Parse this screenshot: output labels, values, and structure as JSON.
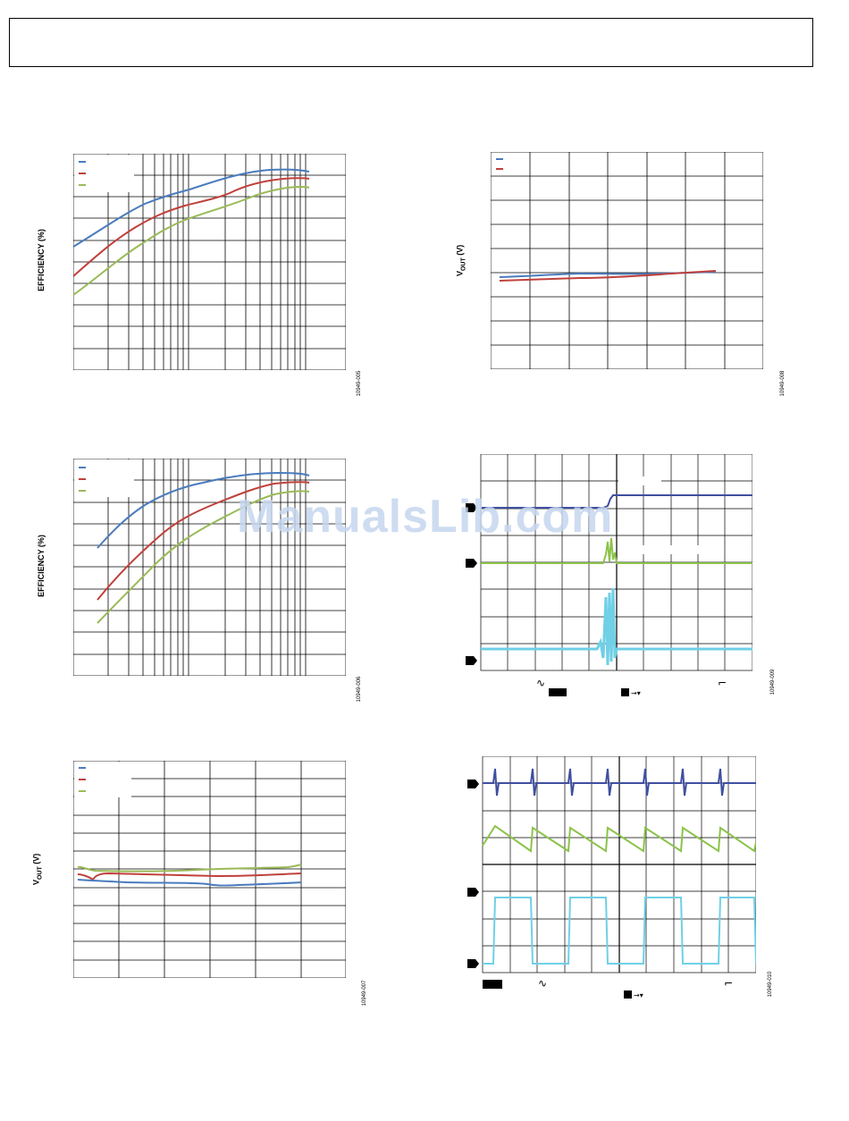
{
  "header": {
    "title": ""
  },
  "watermark": "ManualsLib.com",
  "charts": {
    "eff1": {
      "ylabel": "EFFICIENCY (%)",
      "fig_id": "10949-005"
    },
    "eff2": {
      "ylabel": "EFFICIENCY (%)",
      "fig_id": "10949-006"
    },
    "vout1": {
      "ylabel_main": "V",
      "ylabel_sub": "OUT",
      "ylabel_tail": " (V)",
      "fig_id": "10949-007"
    },
    "vout2": {
      "ylabel_main": "V",
      "ylabel_sub": "OUT",
      "ylabel_tail": " (V)",
      "fig_id": "10949-008"
    },
    "scope1": {
      "fig_id": "10949-009"
    },
    "scope2": {
      "fig_id": "10949-010"
    }
  },
  "colors": {
    "blue": "#4a7bbd",
    "red": "#c0413c",
    "green": "#9aba58",
    "scope_blue": "#3f4fa0",
    "scope_green": "#8cc34a",
    "scope_cyan": "#6fd0e6"
  }
}
